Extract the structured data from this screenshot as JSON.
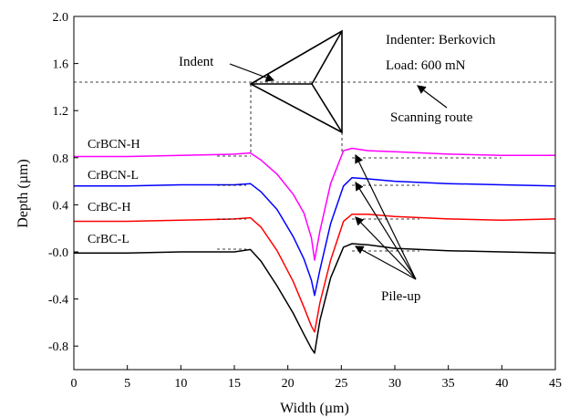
{
  "chart_data": {
    "type": "line",
    "xlabel": "Width (µm)",
    "ylabel": "Depth (µm)",
    "xlim": [
      0,
      45
    ],
    "ylim": [
      -1.0,
      2.0
    ],
    "xticks": [
      0,
      5,
      10,
      15,
      20,
      25,
      30,
      35,
      40,
      45
    ],
    "xtick_labels": [
      "0",
      "5",
      "10",
      "15",
      "20",
      "25",
      "30",
      "35",
      "40",
      "45"
    ],
    "yticks": [
      -0.8,
      -0.4,
      0.0,
      0.4,
      0.8,
      1.2,
      1.6,
      2.0
    ],
    "ytick_labels": [
      "-0.8",
      "-0.4",
      "-0.0",
      "0.4",
      "0.8",
      "1.2",
      "1.6",
      "2.0"
    ],
    "grid": false,
    "series": [
      {
        "name": "CrBCN-H",
        "color": "#ff00ff",
        "x": [
          0,
          5,
          10,
          15,
          16.5,
          17.5,
          19,
          20.5,
          21.5,
          22.2,
          22.5,
          23,
          24,
          25.2,
          26,
          27.5,
          30,
          35,
          40,
          45
        ],
        "y": [
          0.81,
          0.81,
          0.82,
          0.83,
          0.84,
          0.78,
          0.66,
          0.49,
          0.33,
          0.12,
          -0.07,
          0.18,
          0.58,
          0.86,
          0.88,
          0.86,
          0.85,
          0.83,
          0.82,
          0.82
        ]
      },
      {
        "name": "CrBCN-L",
        "color": "#0000ff",
        "x": [
          0,
          5,
          10,
          15,
          16.5,
          17.5,
          19,
          20.5,
          21.5,
          22.2,
          22.5,
          23,
          24,
          25.2,
          26,
          27.5,
          30,
          35,
          40,
          45
        ],
        "y": [
          0.56,
          0.56,
          0.57,
          0.57,
          0.58,
          0.51,
          0.36,
          0.13,
          -0.06,
          -0.24,
          -0.37,
          -0.15,
          0.24,
          0.56,
          0.63,
          0.62,
          0.6,
          0.58,
          0.57,
          0.56
        ]
      },
      {
        "name": "CrBC-H",
        "color": "#ff0000",
        "x": [
          0,
          5,
          10,
          15,
          16.5,
          17.5,
          19,
          20.5,
          21.5,
          22.2,
          22.5,
          23,
          24,
          25.2,
          26,
          27.5,
          30,
          35,
          40,
          45
        ],
        "y": [
          0.26,
          0.26,
          0.27,
          0.28,
          0.29,
          0.21,
          0.01,
          -0.25,
          -0.47,
          -0.63,
          -0.68,
          -0.43,
          -0.07,
          0.26,
          0.32,
          0.32,
          0.3,
          0.28,
          0.27,
          0.28
        ]
      },
      {
        "name": "CrBC-L",
        "color": "#000000",
        "x": [
          0,
          5,
          10,
          15,
          16.5,
          17.5,
          19,
          20.5,
          21.5,
          22.2,
          22.5,
          23,
          24,
          25.2,
          26,
          27.5,
          30,
          35,
          40,
          45
        ],
        "y": [
          -0.01,
          -0.01,
          0.0,
          0.0,
          0.02,
          -0.08,
          -0.29,
          -0.52,
          -0.7,
          -0.82,
          -0.86,
          -0.58,
          -0.22,
          0.04,
          0.07,
          0.06,
          0.03,
          0.01,
          0.0,
          -0.01
        ]
      }
    ],
    "annotations": {
      "indenter": "Indenter: Berkovich",
      "load": "Load: 600 mN",
      "indent": "Indent",
      "scanning_route": "Scanning route",
      "pile_up": "Pile-up"
    }
  }
}
